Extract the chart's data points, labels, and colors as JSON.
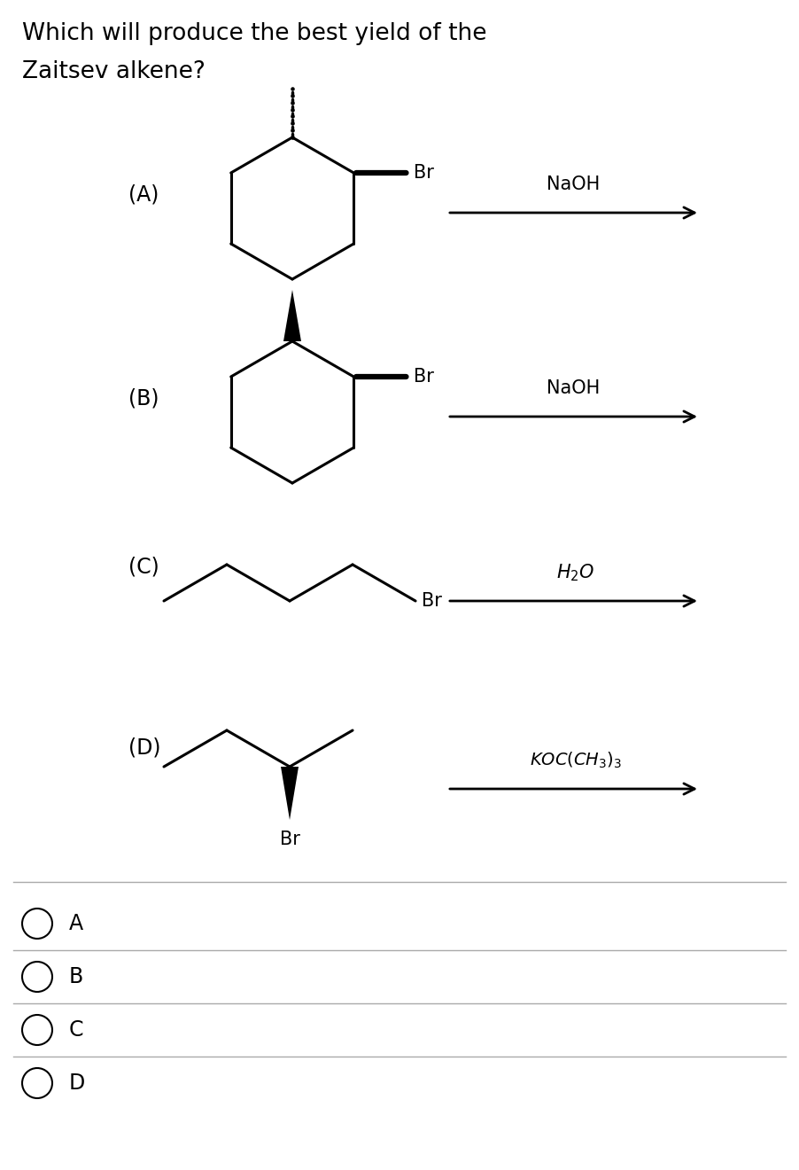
{
  "title_line1": "Which will produce the best yield of the",
  "title_line2": "Zaitsev alkene?",
  "bg_color": "#ffffff",
  "text_color": "#000000",
  "options": [
    "A",
    "B",
    "C",
    "D"
  ],
  "reagents": [
    "NaOH",
    "NaOH",
    "H₂O",
    "KOC(CH₃)₃"
  ],
  "option_labels": [
    "(A)",
    "(B)",
    "(C)",
    "(D)"
  ]
}
